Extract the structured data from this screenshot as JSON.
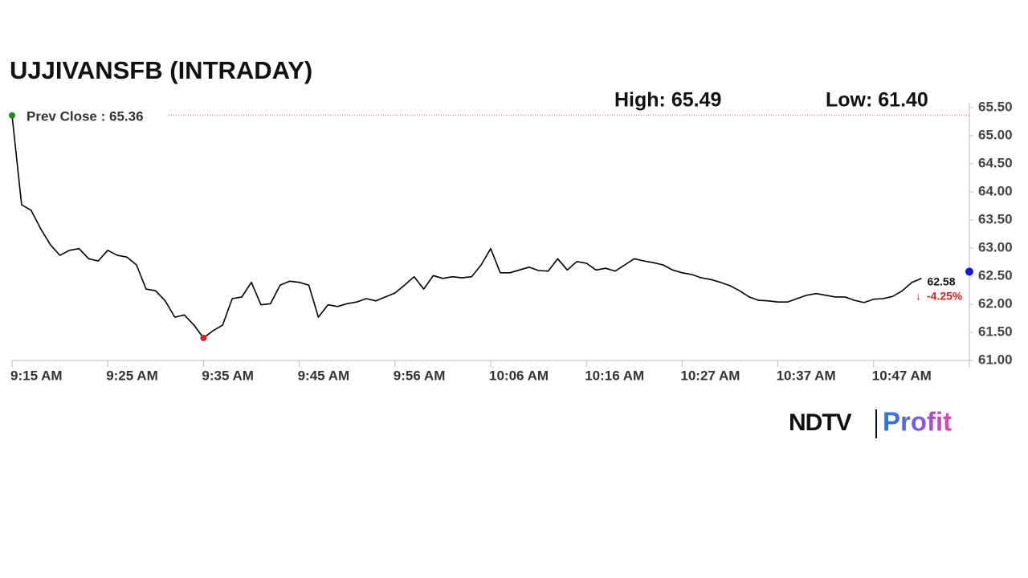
{
  "chart_data": {
    "type": "line",
    "title": "UJJIVANSFB (INTRADAY)",
    "high_label": "High: 65.49",
    "low_label": "Low: 61.40",
    "prev_close": 65.36,
    "prev_close_label": "Prev Close : 65.36",
    "last_price": 62.58,
    "change_label": "-4.25%",
    "x": [
      0,
      1,
      2,
      3,
      4,
      5,
      6,
      7,
      8,
      9,
      10,
      11,
      12,
      13,
      14,
      15,
      16,
      17,
      18,
      19,
      20,
      21,
      22,
      23,
      24,
      25,
      26,
      27,
      28,
      29,
      30,
      31,
      32,
      33,
      34,
      35,
      36,
      37,
      38,
      39,
      40,
      41,
      42,
      43,
      44,
      45,
      46,
      47,
      48,
      49,
      50,
      51,
      52,
      53,
      54,
      55,
      56,
      57,
      58,
      59,
      60,
      61,
      62,
      63,
      64,
      65,
      66,
      67,
      68,
      69,
      70,
      71,
      72,
      73,
      74,
      75,
      76,
      77,
      78,
      79,
      80,
      81,
      82,
      83,
      84,
      85,
      86,
      87,
      88,
      89,
      90,
      91,
      92,
      93,
      94,
      95
    ],
    "series": [
      {
        "name": "UJJIVANSFB",
        "color": "#000000",
        "values": [
          65.36,
          63.77,
          63.67,
          63.34,
          63.06,
          62.87,
          62.96,
          62.99,
          62.81,
          62.77,
          62.96,
          62.87,
          62.84,
          62.7,
          62.27,
          62.24,
          62.06,
          61.77,
          61.81,
          61.63,
          61.4,
          61.53,
          61.63,
          62.1,
          62.13,
          62.39,
          61.99,
          62.01,
          62.34,
          62.41,
          62.39,
          62.34,
          61.77,
          61.99,
          61.96,
          62.01,
          62.04,
          62.1,
          62.06,
          62.13,
          62.2,
          62.34,
          62.49,
          62.27,
          62.51,
          62.46,
          62.49,
          62.47,
          62.49,
          62.7,
          62.99,
          62.56,
          62.56,
          62.61,
          62.66,
          62.6,
          62.59,
          62.81,
          62.61,
          62.76,
          62.73,
          62.61,
          62.64,
          62.59,
          62.7,
          62.81,
          62.77,
          62.74,
          62.7,
          62.61,
          62.56,
          62.53,
          62.47,
          62.44,
          62.39,
          62.33,
          62.24,
          62.13,
          62.07,
          62.06,
          62.04,
          62.04,
          62.1,
          62.16,
          62.19,
          62.16,
          62.13,
          62.13,
          62.07,
          62.03,
          62.09,
          62.1,
          62.14,
          62.24,
          62.39,
          62.46
        ]
      }
    ],
    "xlim": [
      0,
      100
    ],
    "xticks": [
      {
        "value": 0,
        "label": "9:15 AM"
      },
      {
        "value": 10,
        "label": "9:25 AM"
      },
      {
        "value": 20,
        "label": "9:35 AM"
      },
      {
        "value": 30,
        "label": "9:45 AM"
      },
      {
        "value": 40,
        "label": "9:56 AM"
      },
      {
        "value": 50,
        "label": "10:06 AM"
      },
      {
        "value": 60,
        "label": "10:16 AM"
      },
      {
        "value": 70,
        "label": "10:27 AM"
      },
      {
        "value": 80,
        "label": "10:37 AM"
      },
      {
        "value": 90,
        "label": "10:47 AM"
      }
    ],
    "ylim": [
      61.0,
      65.5
    ],
    "yticks": [
      {
        "value": 61.0,
        "label": "61.00"
      },
      {
        "value": 61.5,
        "label": "61.50"
      },
      {
        "value": 62.0,
        "label": "62.00"
      },
      {
        "value": 62.5,
        "label": "62.50"
      },
      {
        "value": 63.0,
        "label": "63.00"
      },
      {
        "value": 63.5,
        "label": "63.50"
      },
      {
        "value": 64.0,
        "label": "64.00"
      },
      {
        "value": 64.5,
        "label": "64.50"
      },
      {
        "value": 65.0,
        "label": "65.00"
      },
      {
        "value": 65.5,
        "label": "65.50"
      }
    ]
  },
  "logo": {
    "left": "NDTV",
    "right": "Profit"
  }
}
